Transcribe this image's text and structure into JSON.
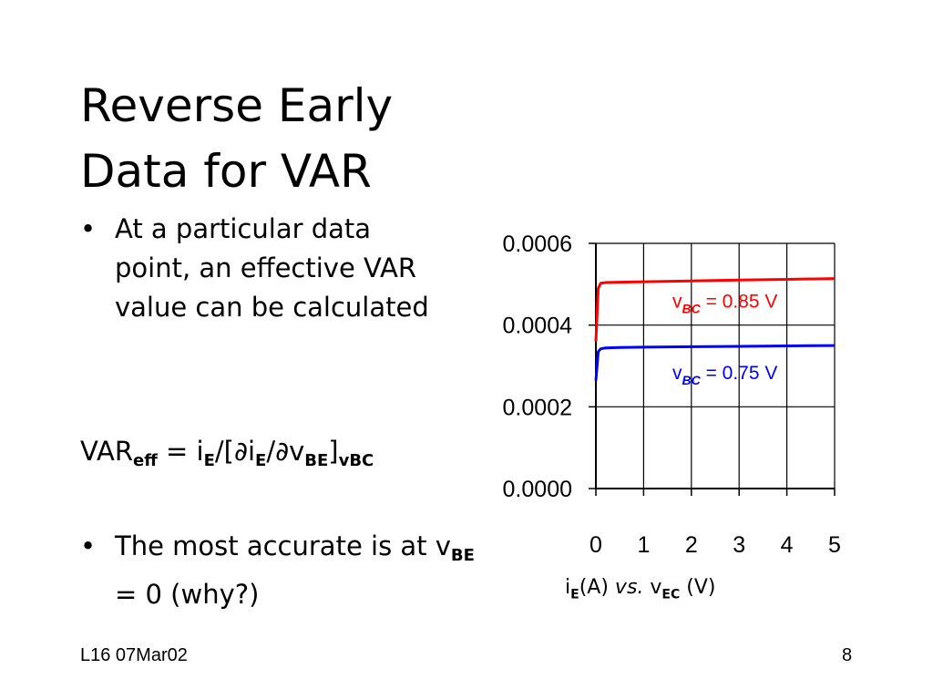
{
  "slide": {
    "title_line1": "Reverse Early",
    "title_line2": "Data for VAR",
    "bullet1": "At a particular data point, an effective VAR value can be calculated",
    "formula": {
      "var": "VAR",
      "var_sub": "eff",
      "eq": " = i",
      "e1": "E",
      "mid1": "/[∂i",
      "e2": "E",
      "mid2": "/∂v",
      "be": "BE",
      "close": "]",
      "vbc": "vBC"
    },
    "bullet2_pre": "The most accurate is at v",
    "bullet2_sub": "BE",
    "bullet2_post": " = 0 (why?)",
    "footer_left": "L16 07Mar02",
    "footer_right": "8"
  },
  "caption": {
    "i": "i",
    "i_sub": "E",
    "a": "(A) ",
    "vs": "vs.",
    "v": " v",
    "v_sub": "EC",
    "unit": " (V)"
  },
  "chart_data": {
    "type": "line",
    "x": [
      0,
      0.05,
      0.1,
      0.2,
      0.5,
      1,
      2,
      3,
      4,
      5
    ],
    "series": [
      {
        "name": "vBC = 0.85 V",
        "label_main": "v",
        "label_sub": "BC",
        "label_rest": " = 0.85 V",
        "color": "#ff0000",
        "values": [
          0.00036,
          0.00049,
          0.000502,
          0.000504,
          0.000505,
          0.000506,
          0.000508,
          0.00051,
          0.000512,
          0.000514
        ]
      },
      {
        "name": "vBC = 0.75 V",
        "label_main": "v",
        "label_sub": "BC",
        "label_rest": " = 0.75 V",
        "color": "#0000ff",
        "values": [
          0.000264,
          0.000335,
          0.000342,
          0.000344,
          0.000345,
          0.000346,
          0.000347,
          0.000348,
          0.000349,
          0.00035
        ]
      }
    ],
    "y_ticks": [
      "0.0000",
      "0.0002",
      "0.0004",
      "0.0006"
    ],
    "x_ticks": [
      "0",
      "1",
      "2",
      "3",
      "4",
      "5"
    ],
    "xlim": [
      0,
      5
    ],
    "ylim": [
      0,
      0.0006
    ],
    "grid": true
  }
}
